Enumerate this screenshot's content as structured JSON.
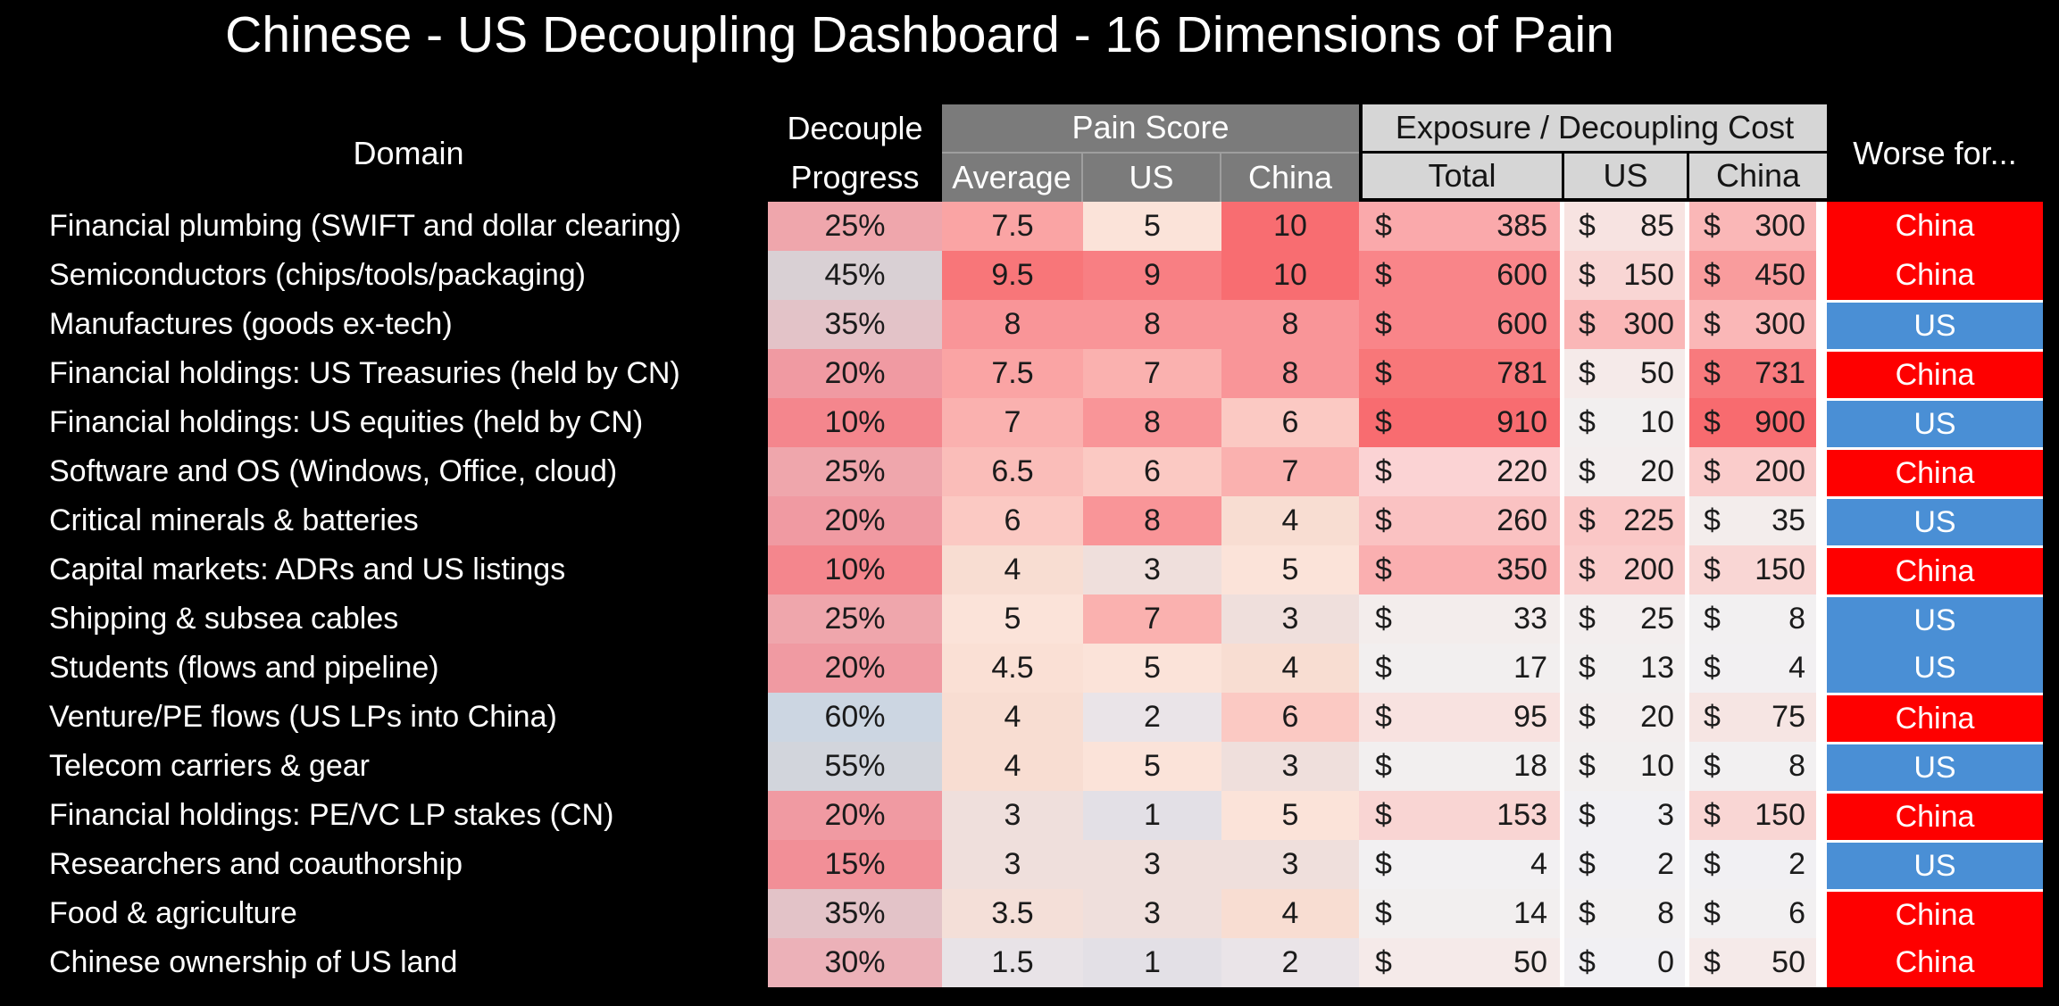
{
  "title": "Chinese - US Decoupling Dashboard - 16 Dimensions of Pain",
  "header": {
    "domain": "Domain",
    "decouple_line1": "Decouple",
    "decouple_line2": "Progress",
    "pain_score": "Pain Score",
    "pain_sub": [
      "Average",
      "US",
      "China"
    ],
    "exposure": "Exposure / Decoupling Cost",
    "exposure_sub": [
      "Total",
      "US",
      "China"
    ],
    "worse": "Worse for...",
    "currency_symbol": "$"
  },
  "colors": {
    "page_bg": "#000000",
    "title_text": "#FFFFFF",
    "pain_header_bg": "#7B7B7B",
    "pain_header_divider": "#9E9E9E",
    "exposure_header_bg": "#D6D6D6",
    "exposure_header_border": "#000000",
    "worse_china": "#FE0000",
    "worse_us": "#4A8FD5",
    "gutter_white": "#FFFFFF",
    "data_text": "#1B1B1B"
  },
  "scales": {
    "progress": {
      "10%": "#F4868D",
      "15%": "#F28F97",
      "20%": "#F09AA2",
      "25%": "#EFA6AC",
      "30%": "#ECB1B8",
      "35%": "#E3C3C8",
      "45%": "#D9D0D4",
      "55%": "#D2D5DC",
      "60%": "#CCD6E2"
    },
    "pain": {
      "1": "#E3E0E6",
      "1.5": "#E8E3E7",
      "2": "#EAE4E8",
      "3": "#EFDFDC",
      "3.5": "#F4DFD8",
      "4": "#F8DDD2",
      "4.5": "#FAE0D5",
      "5": "#FBE3D9",
      "6": "#FBC9C3",
      "6.5": "#FABDB9",
      "7": "#FAB1AF",
      "7.5": "#FAA4A4",
      "8": "#F99598",
      "9": "#F87F83",
      "9.5": "#F87679",
      "10": "#F86D71"
    },
    "cost": {
      "0": "#F1F0F3",
      "2": "#F1F0F3",
      "3": "#F1F0F3",
      "4": "#F2F0F2",
      "6": "#F2F0F1",
      "8": "#F2F0F1",
      "10": "#F2EFEF",
      "13": "#F2EFEF",
      "14": "#F2EFEF",
      "17": "#F2EFEF",
      "18": "#F2EFEF",
      "20": "#F3EEEE",
      "25": "#F3EEEE",
      "33": "#F3EDEC",
      "35": "#F3EDEC",
      "50": "#F5EAE9",
      "75": "#F6E5E3",
      "85": "#F7E3E1",
      "95": "#F8E2E0",
      "150": "#F9D6D4",
      "153": "#F9D5D3",
      "200": "#FACCCB",
      "220": "#FBD3D4",
      "225": "#FAC7C6",
      "260": "#FAC2C2",
      "300": "#FAB7B7",
      "350": "#FAAFB0",
      "385": "#FAA9AB",
      "450": "#F99C9D",
      "600": "#F98589",
      "731": "#F87A7D",
      "781": "#F87779",
      "900": "#F86B6F",
      "910": "#F86C70"
    }
  },
  "rows": [
    {
      "domain": "Financial plumbing (SWIFT and dollar clearing)",
      "progress": "25%",
      "pain": {
        "avg": "7.5",
        "us": "5",
        "china": "10"
      },
      "cost": {
        "total": "385",
        "us": "85",
        "china": "300"
      },
      "worse": "China"
    },
    {
      "domain": "Semiconductors (chips/tools/packaging)",
      "progress": "45%",
      "pain": {
        "avg": "9.5",
        "us": "9",
        "china": "10"
      },
      "cost": {
        "total": "600",
        "us": "150",
        "china": "450"
      },
      "worse": "China"
    },
    {
      "domain": "Manufactures (goods ex-tech)",
      "progress": "35%",
      "pain": {
        "avg": "8",
        "us": "8",
        "china": "8"
      },
      "cost": {
        "total": "600",
        "us": "300",
        "china": "300"
      },
      "worse": "US"
    },
    {
      "domain": "Financial holdings: US Treasuries (held by CN)",
      "progress": "20%",
      "pain": {
        "avg": "7.5",
        "us": "7",
        "china": "8"
      },
      "cost": {
        "total": "781",
        "us": "50",
        "china": "731"
      },
      "worse": "China"
    },
    {
      "domain": "Financial holdings: US equities (held by CN)",
      "progress": "10%",
      "pain": {
        "avg": "7",
        "us": "8",
        "china": "6"
      },
      "cost": {
        "total": "910",
        "us": "10",
        "china": "900"
      },
      "worse": "US"
    },
    {
      "domain": "Software and OS (Windows, Office, cloud)",
      "progress": "25%",
      "pain": {
        "avg": "6.5",
        "us": "6",
        "china": "7"
      },
      "cost": {
        "total": "220",
        "us": "20",
        "china": "200"
      },
      "worse": "China"
    },
    {
      "domain": "Critical minerals & batteries",
      "progress": "20%",
      "pain": {
        "avg": "6",
        "us": "8",
        "china": "4"
      },
      "cost": {
        "total": "260",
        "us": "225",
        "china": "35"
      },
      "worse": "US"
    },
    {
      "domain": "Capital markets: ADRs and US listings",
      "progress": "10%",
      "pain": {
        "avg": "4",
        "us": "3",
        "china": "5"
      },
      "cost": {
        "total": "350",
        "us": "200",
        "china": "150"
      },
      "worse": "China"
    },
    {
      "domain": "Shipping & subsea cables",
      "progress": "25%",
      "pain": {
        "avg": "5",
        "us": "7",
        "china": "3"
      },
      "cost": {
        "total": "33",
        "us": "25",
        "china": "8"
      },
      "worse": "US"
    },
    {
      "domain": "Students (flows and pipeline)",
      "progress": "20%",
      "pain": {
        "avg": "4.5",
        "us": "5",
        "china": "4"
      },
      "cost": {
        "total": "17",
        "us": "13",
        "china": "4"
      },
      "worse": "US"
    },
    {
      "domain": "Venture/PE flows (US LPs into China)",
      "progress": "60%",
      "pain": {
        "avg": "4",
        "us": "2",
        "china": "6"
      },
      "cost": {
        "total": "95",
        "us": "20",
        "china": "75"
      },
      "worse": "China"
    },
    {
      "domain": "Telecom carriers & gear",
      "progress": "55%",
      "pain": {
        "avg": "4",
        "us": "5",
        "china": "3"
      },
      "cost": {
        "total": "18",
        "us": "10",
        "china": "8"
      },
      "worse": "US"
    },
    {
      "domain": "Financial holdings: PE/VC LP stakes (CN)",
      "progress": "20%",
      "pain": {
        "avg": "3",
        "us": "1",
        "china": "5"
      },
      "cost": {
        "total": "153",
        "us": "3",
        "china": "150"
      },
      "worse": "China"
    },
    {
      "domain": "Researchers and coauthorship",
      "progress": "15%",
      "pain": {
        "avg": "3",
        "us": "3",
        "china": "3"
      },
      "cost": {
        "total": "4",
        "us": "2",
        "china": "2"
      },
      "worse": "US"
    },
    {
      "domain": "Food & agriculture",
      "progress": "35%",
      "pain": {
        "avg": "3.5",
        "us": "3",
        "china": "4"
      },
      "cost": {
        "total": "14",
        "us": "8",
        "china": "6"
      },
      "worse": "China"
    },
    {
      "domain": "Chinese ownership of US land",
      "progress": "30%",
      "pain": {
        "avg": "1.5",
        "us": "1",
        "china": "2"
      },
      "cost": {
        "total": "50",
        "us": "0",
        "china": "50"
      },
      "worse": "China"
    }
  ]
}
